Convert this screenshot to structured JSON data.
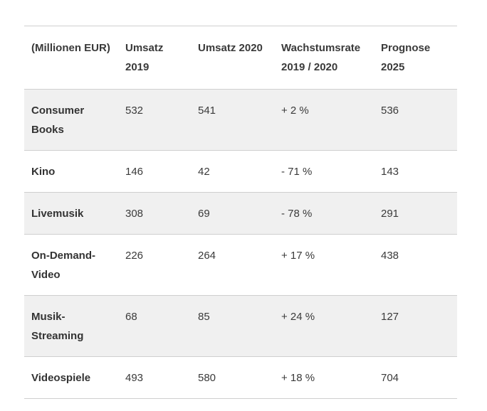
{
  "table": {
    "headers": [
      "(Millionen EUR)",
      "Umsatz 2019",
      "Umsatz 2020",
      "Wachstumsrate 2019 / 2020",
      "Prognose 2025"
    ],
    "rows": [
      {
        "label": "Consumer Books",
        "cells": [
          "532",
          "541",
          "+ 2 %",
          "536"
        ],
        "shade": true,
        "tall": true
      },
      {
        "label": "Kino",
        "cells": [
          "146",
          "42",
          "- 71 %",
          "143"
        ],
        "shade": false,
        "tall": false
      },
      {
        "label": "Livemusik",
        "cells": [
          "308",
          "69",
          "- 78 %",
          "291"
        ],
        "shade": true,
        "tall": false
      },
      {
        "label": "On-Demand-Video",
        "cells": [
          "226",
          "264",
          "+ 17 %",
          "438"
        ],
        "shade": false,
        "tall": true
      },
      {
        "label": "Musik-Streaming",
        "cells": [
          "68",
          "85",
          "+ 24 %",
          "127"
        ],
        "shade": true,
        "tall": true
      },
      {
        "label": "Videospiele",
        "cells": [
          "493",
          "580",
          "+ 18 %",
          "704"
        ],
        "shade": false,
        "tall": false
      }
    ]
  }
}
